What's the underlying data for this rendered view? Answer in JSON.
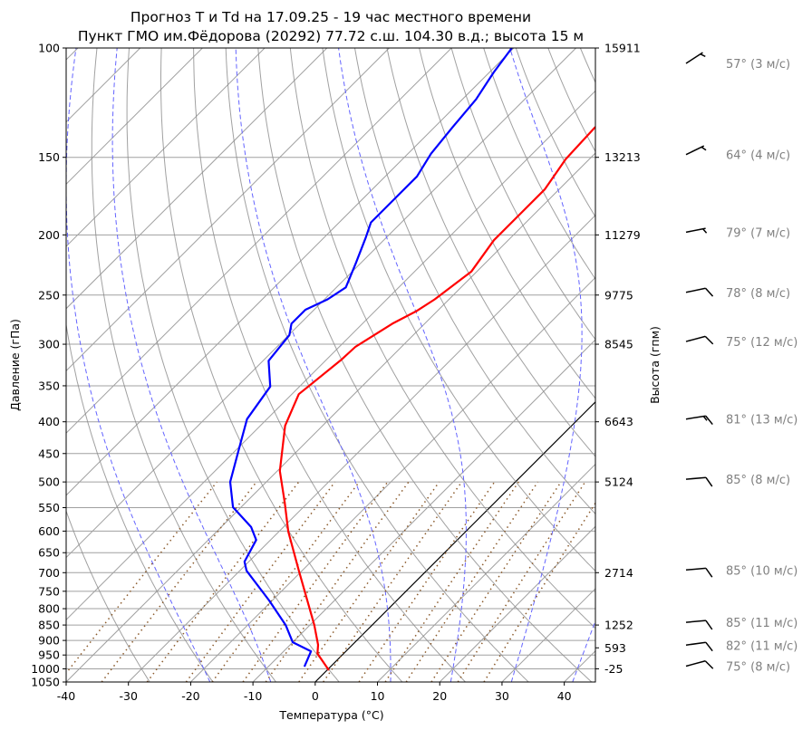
{
  "chart_data": {
    "type": "skew-t",
    "title": [
      "Прогноз T и Td на 17.09.25 - 19 час местного времени",
      "Пункт ГМО им.Фёдорова (20292) 77.72 с.ш. 104.30 в.д.; высота 15 м"
    ],
    "xlabel": "Температура (°C)",
    "ylabel": "Давление (гПа)",
    "ylabel_right": "Высота (гпм)",
    "xlim": [
      -40,
      45
    ],
    "ylim": [
      1050,
      100
    ],
    "x_ticks": [
      -40,
      -30,
      -20,
      -10,
      0,
      10,
      20,
      30,
      40
    ],
    "y_ticks": [
      100,
      150,
      200,
      250,
      300,
      350,
      400,
      450,
      500,
      550,
      600,
      650,
      700,
      750,
      800,
      850,
      900,
      950,
      1000,
      1050
    ],
    "height_ticks": [
      {
        "p": 100,
        "label": "15911"
      },
      {
        "p": 150,
        "label": "13213"
      },
      {
        "p": 200,
        "label": "11279"
      },
      {
        "p": 250,
        "label": "9775"
      },
      {
        "p": 300,
        "label": "8545"
      },
      {
        "p": 400,
        "label": "6643"
      },
      {
        "p": 500,
        "label": "5124"
      },
      {
        "p": 700,
        "label": "2714"
      },
      {
        "p": 850,
        "label": "1252"
      },
      {
        "p": 925,
        "label": "593"
      },
      {
        "p": 1000,
        "label": "-25"
      }
    ],
    "series": [
      {
        "name": "T",
        "color": "#ff0000",
        "pressure": [
          1005,
          945,
          915,
          850,
          695,
          601,
          540,
          480,
          406,
          361,
          351,
          318,
          303,
          278,
          265,
          254,
          229,
          204,
          184,
          169,
          151,
          134
        ],
        "temperature": [
          0.3,
          -4.2,
          -5.5,
          -9.3,
          -20.5,
          -28.5,
          -33.7,
          -39.6,
          -46.0,
          -48.9,
          -48.6,
          -47.6,
          -47.4,
          -45.2,
          -43.3,
          -42.3,
          -40.9,
          -42.3,
          -42.3,
          -42.3,
          -43.8,
          -44.2
        ]
      },
      {
        "name": "Td",
        "color": "#0000ff",
        "pressure": [
          992,
          937,
          906,
          850,
          776,
          695,
          672,
          620,
          591,
          549,
          500,
          434,
          396,
          351,
          319,
          290,
          278,
          264,
          254,
          243,
          222,
          202,
          191,
          175,
          161,
          148,
          134,
          121,
          109.5,
          100
        ],
        "temperature": [
          -4.2,
          -5.6,
          -10.0,
          -13.9,
          -20.5,
          -28.9,
          -30.7,
          -32.3,
          -35.2,
          -41.3,
          -45.8,
          -50.3,
          -53.2,
          -54.7,
          -59.1,
          -59.9,
          -61.4,
          -61.4,
          -59.5,
          -58.5,
          -60.8,
          -63.3,
          -64.9,
          -64.9,
          -64.9,
          -66.3,
          -67.1,
          -67.8,
          -69.3,
          -70.3
        ]
      }
    ],
    "reference_lines": {
      "highlight_isotherm_c": 0,
      "isotherm_step_c": 10,
      "dry_adiabats": true,
      "moist_adiabats": true,
      "mixing_ratio_lines": true
    },
    "winds": [
      {
        "p": 100,
        "dir": 57,
        "speed": 3,
        "label": "57° (3 м/с)"
      },
      {
        "p": 150,
        "dir": 64,
        "speed": 4,
        "label": "64° (4 м/с)"
      },
      {
        "p": 200,
        "dir": 79,
        "speed": 7,
        "label": "79° (7 м/с)"
      },
      {
        "p": 250,
        "dir": 78,
        "speed": 8,
        "label": "78° (8 м/с)"
      },
      {
        "p": 300,
        "dir": 75,
        "speed": 12,
        "label": "75° (12 м/с)"
      },
      {
        "p": 400,
        "dir": 81,
        "speed": 13,
        "label": "81° (13 м/с)"
      },
      {
        "p": 500,
        "dir": 85,
        "speed": 8,
        "label": "85° (8 м/с)"
      },
      {
        "p": 700,
        "dir": 85,
        "speed": 10,
        "label": "85° (10 м/с)"
      },
      {
        "p": 850,
        "dir": 85,
        "speed": 11,
        "label": "85° (11 м/с)"
      },
      {
        "p": 925,
        "dir": 82,
        "speed": 11,
        "label": "82° (11 м/с)"
      },
      {
        "p": 1000,
        "dir": 75,
        "speed": 8,
        "label": "75° (8 м/с)"
      }
    ]
  }
}
